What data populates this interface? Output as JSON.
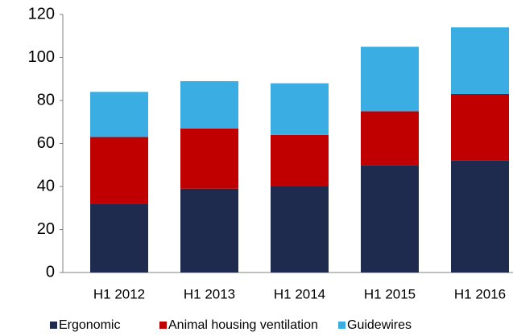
{
  "chart_data": {
    "type": "bar",
    "stacked": true,
    "categories": [
      "H1 2012",
      "H1 2013",
      "H1 2014",
      "H1 2015",
      "H1 2016"
    ],
    "series": [
      {
        "name": "Ergonomic",
        "color": "#1f2b4e",
        "values": [
          32,
          39,
          40,
          50,
          52
        ]
      },
      {
        "name": "Animal housing ventilation",
        "color": "#c00000",
        "values": [
          31,
          28,
          24,
          25,
          31
        ]
      },
      {
        "name": "Guidewires",
        "color": "#3aaee2",
        "values": [
          21,
          22,
          24,
          30,
          31
        ]
      }
    ],
    "ylim": [
      0,
      120
    ],
    "yticks": [
      0,
      20,
      40,
      60,
      80,
      100,
      120
    ],
    "grid": false,
    "legend": "bottom"
  }
}
